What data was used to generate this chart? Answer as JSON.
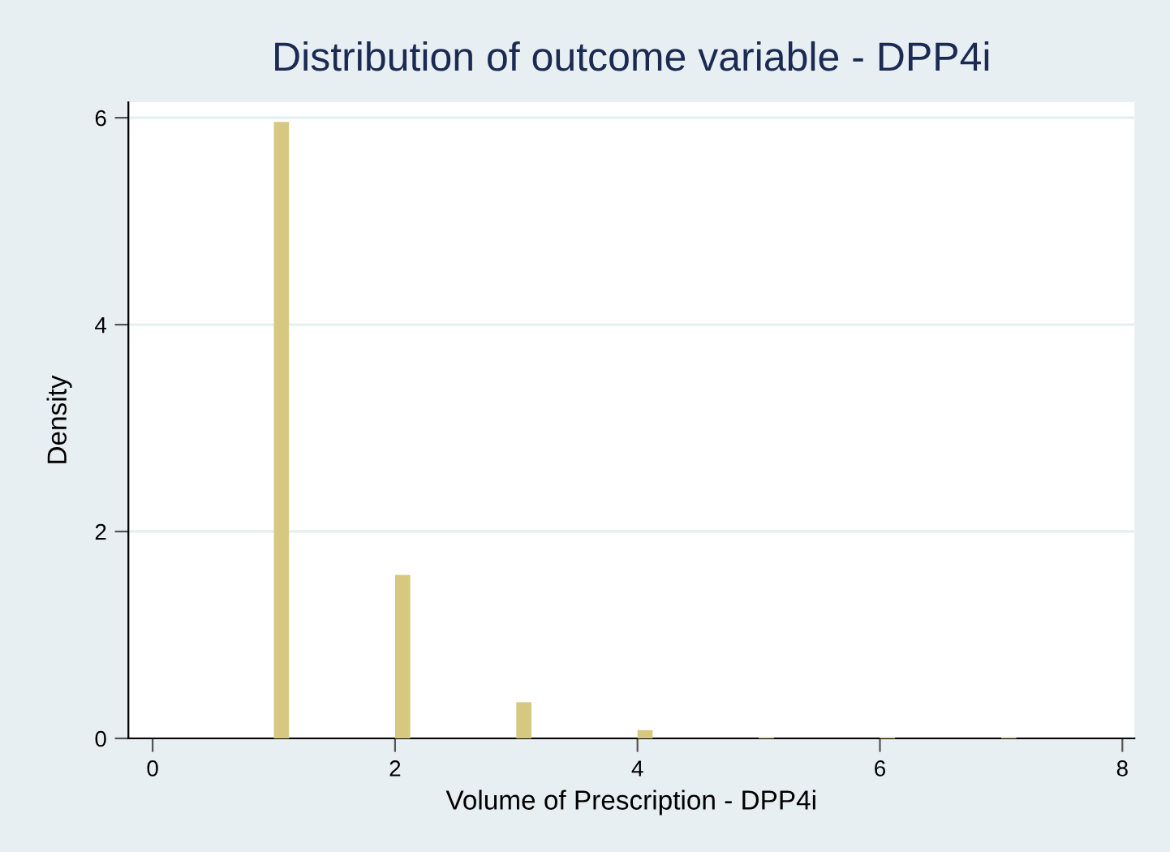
{
  "chart_data": {
    "type": "histogram",
    "title": "Distribution of outcome variable - DPP4i",
    "xlabel": "Volume of Prescription - DPP4i",
    "ylabel": "Density",
    "bins": [
      1,
      1.125,
      1.25,
      1.375,
      1.5,
      1.625,
      1.75,
      1.875,
      2,
      2.125,
      2.25,
      2.375,
      2.5,
      2.625,
      2.75,
      2.875,
      3,
      3.125,
      3.25,
      3.375,
      3.5,
      3.625,
      3.75,
      3.875,
      4,
      4.125,
      4.25,
      4.375,
      4.5,
      4.625,
      4.75,
      4.875,
      5,
      5.125,
      5.25,
      5.375,
      5.5,
      5.625,
      5.75,
      5.875,
      6,
      6.125,
      6.25,
      6.375,
      6.5,
      6.625,
      6.75,
      6.875,
      7,
      7.125
    ],
    "values": [
      5.96,
      0,
      0,
      0,
      0,
      0,
      0,
      0,
      1.58,
      0,
      0,
      0,
      0,
      0,
      0,
      0,
      0.35,
      0,
      0,
      0,
      0,
      0,
      0,
      0,
      0.08,
      0,
      0,
      0,
      0,
      0,
      0,
      0,
      0.01,
      0,
      0,
      0,
      0,
      0,
      0,
      0,
      0.01,
      0,
      0,
      0,
      0,
      0,
      0,
      0,
      0.01
    ],
    "color": "#d6c97f",
    "xlim": [
      -0.2,
      8.1
    ],
    "xticks": [
      0,
      2,
      4,
      6,
      8
    ],
    "ylim": [
      0,
      6.15
    ],
    "yticks": [
      0,
      2,
      4,
      6
    ],
    "grid": "y",
    "legend": false
  }
}
